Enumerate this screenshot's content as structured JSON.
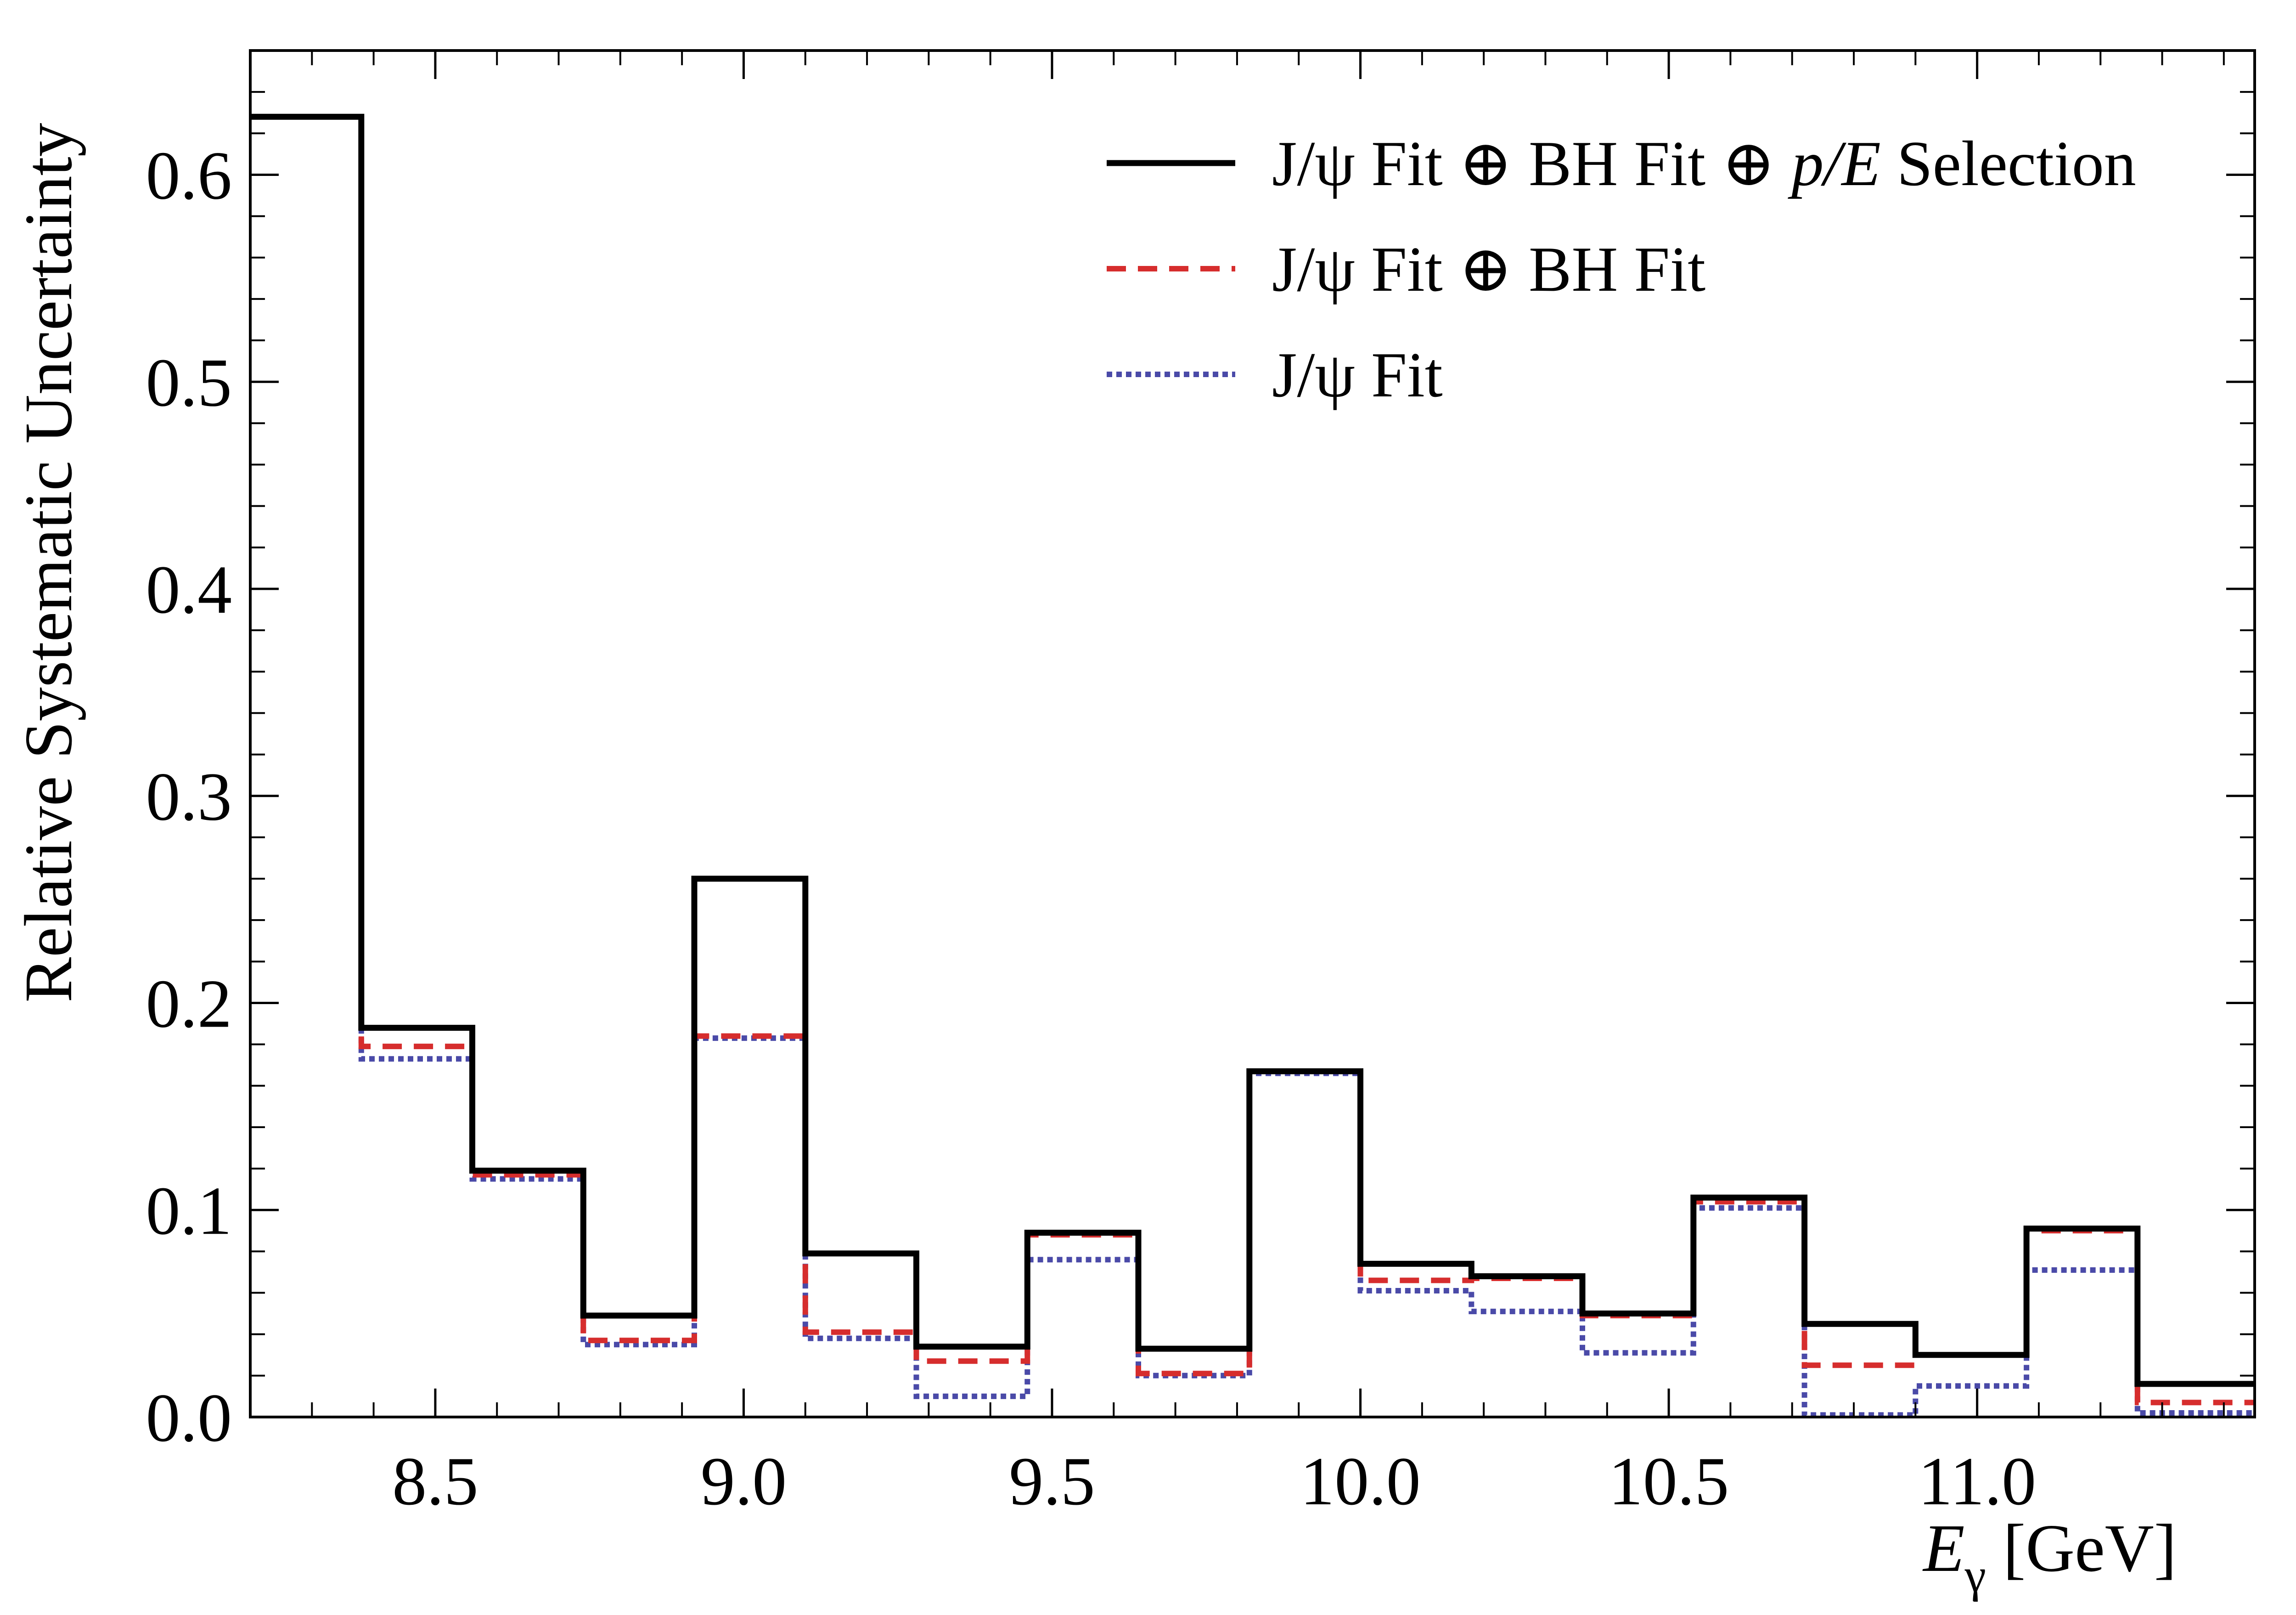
{
  "chart_data": {
    "type": "step",
    "title": "",
    "xlabel_main": "E",
    "xlabel_sub": "γ",
    "xlabel_unit": " [GeV]",
    "ylabel": "Relative Systematic Uncertainty",
    "xlim": [
      8.2,
      11.45
    ],
    "ylim": [
      0.0,
      0.66
    ],
    "x_ticks": [
      8.5,
      9.0,
      9.5,
      10.0,
      10.5,
      11.0
    ],
    "x_tick_labels": [
      "8.5",
      "9.0",
      "9.5",
      "10.0",
      "10.5",
      "11.0"
    ],
    "y_ticks": [
      0.0,
      0.1,
      0.2,
      0.3,
      0.4,
      0.5,
      0.6
    ],
    "y_tick_labels": [
      "0.0",
      "0.1",
      "0.2",
      "0.3",
      "0.4",
      "0.5",
      "0.6"
    ],
    "grid": false,
    "legend_position": "top-right",
    "bin_edges": [
      8.2,
      8.38,
      8.56,
      8.74,
      8.92,
      9.1,
      9.28,
      9.46,
      9.64,
      9.82,
      10.0,
      10.18,
      10.36,
      10.54,
      10.72,
      10.9,
      11.08,
      11.26,
      11.45
    ],
    "series": [
      {
        "name_parts": [
          "J/ψ Fit ⊕ BH Fit ⊕ ",
          "p/E",
          " Selection"
        ],
        "style": "solid",
        "color": "#000000",
        "values": [
          0.628,
          0.188,
          0.119,
          0.049,
          0.26,
          0.079,
          0.034,
          0.089,
          0.033,
          0.167,
          0.074,
          0.068,
          0.05,
          0.106,
          0.045,
          0.03,
          0.091,
          0.016
        ]
      },
      {
        "name_parts": [
          "J/ψ Fit ⊕ BH Fit"
        ],
        "style": "dashed",
        "color": "#d62d2d",
        "values": [
          0.628,
          0.179,
          0.117,
          0.037,
          0.184,
          0.041,
          0.027,
          0.088,
          0.021,
          0.167,
          0.066,
          0.067,
          0.049,
          0.104,
          0.025,
          0.03,
          0.09,
          0.007
        ]
      },
      {
        "name_parts": [
          "J/ψ Fit"
        ],
        "style": "dotted",
        "color": "#4a4aa8",
        "values": [
          0.628,
          0.173,
          0.115,
          0.035,
          0.183,
          0.038,
          0.01,
          0.076,
          0.02,
          0.166,
          0.061,
          0.051,
          0.031,
          0.101,
          0.001,
          0.015,
          0.071,
          0.002
        ]
      }
    ]
  }
}
